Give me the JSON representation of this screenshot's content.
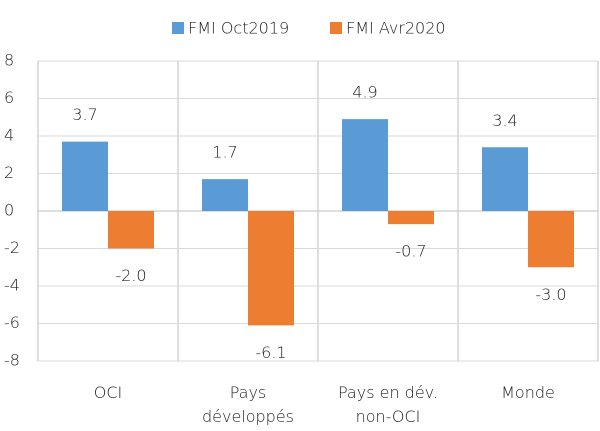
{
  "chart_data": {
    "type": "bar",
    "categories": [
      [
        "OCI"
      ],
      [
        "Pays",
        "développés"
      ],
      [
        "Pays en dév.",
        "non-OCI"
      ],
      [
        "Monde"
      ]
    ],
    "series": [
      {
        "name": "FMI Oct2019",
        "color": "#5b9bd5",
        "values": [
          3.7,
          1.7,
          4.9,
          3.4
        ],
        "value_labels": [
          "3.7",
          "1.7",
          "4.9",
          "3.4"
        ]
      },
      {
        "name": "FMI Avr2020",
        "color": "#ed7d31",
        "values": [
          -2,
          -6.1,
          -0.7,
          -3
        ],
        "value_labels": [
          "-2.0",
          "-6.1",
          "-0.7",
          "-3.0"
        ]
      }
    ],
    "ylim": [
      -8,
      8
    ],
    "yticks": [
      -8,
      -6,
      -4,
      -2,
      0,
      2,
      4,
      6,
      8
    ],
    "legend": "top"
  }
}
